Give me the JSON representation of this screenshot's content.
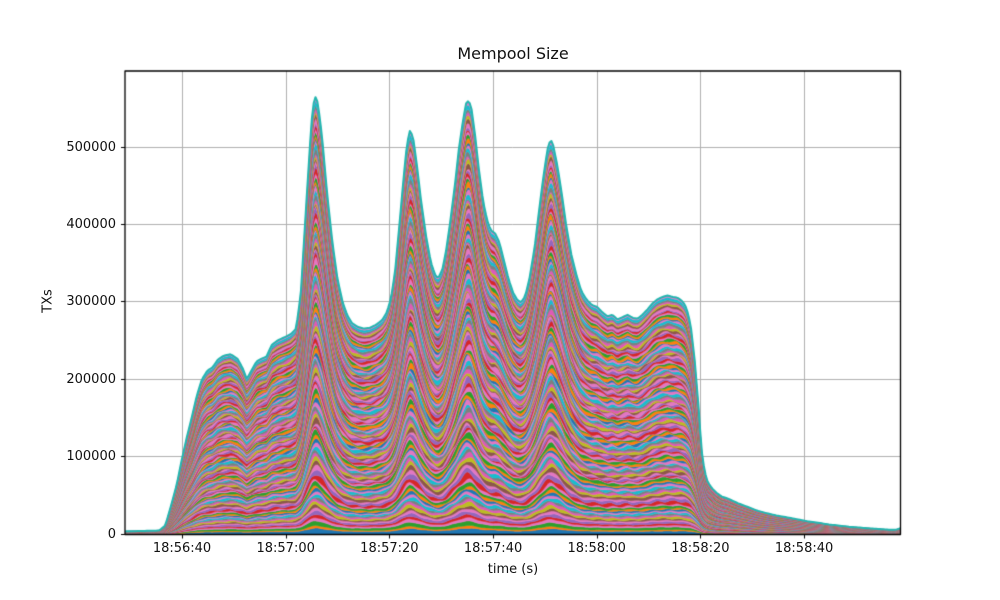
{
  "chart_data": {
    "type": "area",
    "stacked": true,
    "title": "Mempool Size",
    "xlabel": "time (s)",
    "ylabel": "TXs",
    "grid": true,
    "legend": "none",
    "grid_color": "#b0b0b0",
    "spine_color": "#000000",
    "outline_color": "#23b7b0",
    "palette": [
      "#1f77b4",
      "#ff7f0e",
      "#2ca02c",
      "#e377c2",
      "#d62728",
      "#9467bd",
      "#e377c2",
      "#8c564b",
      "#bcbd22",
      "#de5ab7",
      "#7f7f7f",
      "#17becf",
      "#e377c2"
    ],
    "num_layers": 130,
    "ylim": [
      0,
      599000
    ],
    "x_domain_seconds": [
      0,
      149.6
    ],
    "x_ticks": [
      {
        "t": 11,
        "label": "18:56:40"
      },
      {
        "t": 31,
        "label": "18:57:00"
      },
      {
        "t": 51,
        "label": "18:57:20"
      },
      {
        "t": 71,
        "label": "18:57:40"
      },
      {
        "t": 91,
        "label": "18:58:00"
      },
      {
        "t": 111,
        "label": "18:58:20"
      },
      {
        "t": 131,
        "label": "18:58:40"
      }
    ],
    "y_ticks": [
      {
        "v": 0,
        "label": "0"
      },
      {
        "v": 100000,
        "label": "100000"
      },
      {
        "v": 200000,
        "label": "200000"
      },
      {
        "v": 300000,
        "label": "300000"
      },
      {
        "v": 400000,
        "label": "400000"
      },
      {
        "v": 500000,
        "label": "500000"
      }
    ],
    "envelope": [
      [
        0,
        4000
      ],
      [
        3,
        4500
      ],
      [
        6,
        5000
      ],
      [
        6.7,
        5500
      ],
      [
        7.8,
        12000
      ],
      [
        9,
        40000
      ],
      [
        10,
        65000
      ],
      [
        10.9,
        95000
      ],
      [
        11.9,
        125000
      ],
      [
        12.9,
        152000
      ],
      [
        13.8,
        178000
      ],
      [
        14.8,
        200000
      ],
      [
        15.9,
        212000
      ],
      [
        16.9,
        216000
      ],
      [
        17.9,
        226000
      ],
      [
        19,
        231000
      ],
      [
        20.4,
        233000
      ],
      [
        21.7,
        227000
      ],
      [
        22.7,
        215000
      ],
      [
        23.5,
        201000
      ],
      [
        24.4,
        212000
      ],
      [
        25.4,
        224000
      ],
      [
        26.6,
        228000
      ],
      [
        27.3,
        230000
      ],
      [
        28.3,
        245000
      ],
      [
        29.5,
        251000
      ],
      [
        30.8,
        255000
      ],
      [
        32,
        259000
      ],
      [
        33,
        266000
      ],
      [
        33.9,
        310000
      ],
      [
        34.9,
        420000
      ],
      [
        35.7,
        505000
      ],
      [
        36.2,
        552000
      ],
      [
        36.7,
        566000
      ],
      [
        37.2,
        558000
      ],
      [
        38,
        515000
      ],
      [
        39,
        440000
      ],
      [
        40,
        378000
      ],
      [
        41,
        330000
      ],
      [
        42,
        300000
      ],
      [
        42.9,
        283000
      ],
      [
        43.8,
        273000
      ],
      [
        45,
        268000
      ],
      [
        46.1,
        266000
      ],
      [
        47.2,
        267000
      ],
      [
        48.4,
        271000
      ],
      [
        49.6,
        277000
      ],
      [
        50.5,
        287000
      ],
      [
        51.3,
        305000
      ],
      [
        52.1,
        340000
      ],
      [
        53,
        405000
      ],
      [
        53.8,
        465000
      ],
      [
        54.4,
        505000
      ],
      [
        55,
        523000
      ],
      [
        55.6,
        512000
      ],
      [
        56.3,
        478000
      ],
      [
        57.1,
        432000
      ],
      [
        58.1,
        385000
      ],
      [
        59,
        352000
      ],
      [
        59.8,
        336000
      ],
      [
        60.4,
        331000
      ],
      [
        61.2,
        342000
      ],
      [
        61.9,
        365000
      ],
      [
        62.7,
        402000
      ],
      [
        63.7,
        455000
      ],
      [
        64.4,
        498000
      ],
      [
        65.2,
        535000
      ],
      [
        65.8,
        557000
      ],
      [
        66.3,
        561000
      ],
      [
        66.8,
        552000
      ],
      [
        67.5,
        518000
      ],
      [
        68.3,
        470000
      ],
      [
        69.1,
        430000
      ],
      [
        69.9,
        405000
      ],
      [
        70.6,
        393000
      ],
      [
        71.4,
        389000
      ],
      [
        72.2,
        378000
      ],
      [
        73,
        357000
      ],
      [
        74,
        330000
      ],
      [
        74.9,
        312000
      ],
      [
        75.7,
        303000
      ],
      [
        76.4,
        300000
      ],
      [
        77.2,
        308000
      ],
      [
        78,
        330000
      ],
      [
        79,
        370000
      ],
      [
        79.9,
        420000
      ],
      [
        80.7,
        462000
      ],
      [
        81.5,
        498000
      ],
      [
        82.1,
        511000
      ],
      [
        82.6,
        503000
      ],
      [
        83.4,
        477000
      ],
      [
        84.2,
        443000
      ],
      [
        85.1,
        400000
      ],
      [
        86.1,
        362000
      ],
      [
        87.1,
        335000
      ],
      [
        88,
        315000
      ],
      [
        89,
        304000
      ],
      [
        90,
        297000
      ],
      [
        91.1,
        294000
      ],
      [
        92.1,
        287000
      ],
      [
        93.1,
        282000
      ],
      [
        94,
        284000
      ],
      [
        95,
        278000
      ],
      [
        96,
        281000
      ],
      [
        97,
        284000
      ],
      [
        97.9,
        280000
      ],
      [
        98.9,
        279000
      ],
      [
        99.8,
        284000
      ],
      [
        100.8,
        291000
      ],
      [
        101.8,
        299000
      ],
      [
        102.7,
        304000
      ],
      [
        103.7,
        307000
      ],
      [
        104.7,
        309000
      ],
      [
        105.6,
        307000
      ],
      [
        106.6,
        306000
      ],
      [
        107.6,
        301000
      ],
      [
        108.3,
        293000
      ],
      [
        109.1,
        272000
      ],
      [
        109.9,
        225000
      ],
      [
        110.7,
        160000
      ],
      [
        111.2,
        110000
      ],
      [
        111.8,
        82000
      ],
      [
        112.4,
        68000
      ],
      [
        113.2,
        60000
      ],
      [
        114.1,
        54000
      ],
      [
        115.1,
        49000
      ],
      [
        116.1,
        47000
      ],
      [
        117.1,
        44000
      ],
      [
        118.4,
        40000
      ],
      [
        120,
        36000
      ],
      [
        121.9,
        31000
      ],
      [
        123.8,
        27500
      ],
      [
        125.7,
        24500
      ],
      [
        127.8,
        22000
      ],
      [
        129.8,
        19500
      ],
      [
        131.7,
        17000
      ],
      [
        133.8,
        15000
      ],
      [
        135.8,
        13000
      ],
      [
        137.7,
        11500
      ],
      [
        139.7,
        10000
      ],
      [
        141.6,
        9000
      ],
      [
        143.5,
        8000
      ],
      [
        145.5,
        7000
      ],
      [
        147.4,
        6200
      ],
      [
        148.6,
        6000
      ],
      [
        149.1,
        7000
      ],
      [
        149.6,
        8000
      ]
    ]
  }
}
